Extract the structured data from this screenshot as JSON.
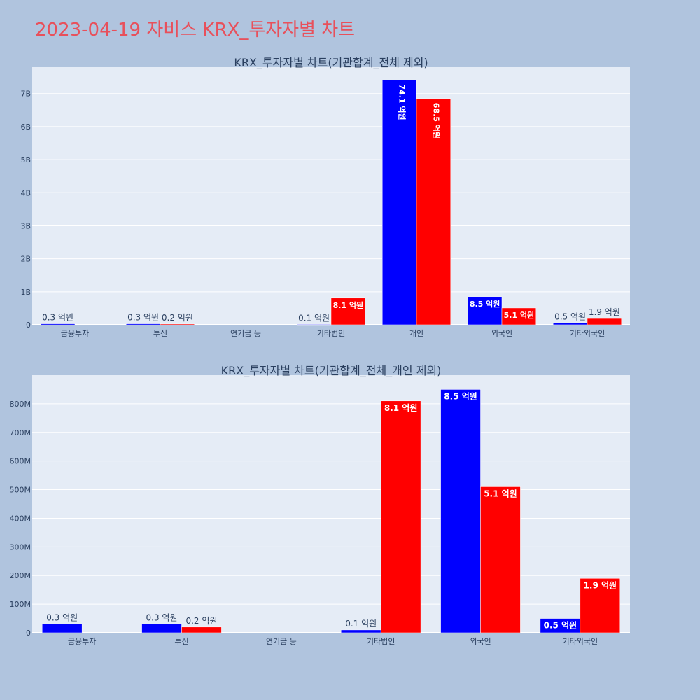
{
  "page_title": "2023-04-19 자비스 KRX_투자자별 차트",
  "colors": {
    "buy": "#0000ff",
    "sell": "#ff0000",
    "plot_bg": "#e5ecf6",
    "page_bg": "#b0c4de",
    "title": "#e8505b"
  },
  "chart_data": [
    {
      "type": "bar",
      "title": "KRX_투자자별 차트(기관합계_전체 제외)",
      "categories": [
        "금융투자",
        "투신",
        "연기금 등",
        "기타법인",
        "개인",
        "외국인",
        "기타외국인"
      ],
      "y_tick_values": [
        0,
        1000000000,
        2000000000,
        3000000000,
        4000000000,
        5000000000,
        6000000000,
        7000000000
      ],
      "y_tick_labels": [
        "0",
        "1B",
        "2B",
        "3B",
        "4B",
        "5B",
        "6B",
        "7B"
      ],
      "ylim": [
        0,
        7800000000
      ],
      "grid": true,
      "series": [
        {
          "color": "#0000ff",
          "values": [
            30000000,
            30000000,
            0,
            10000000,
            7410000000,
            850000000,
            50000000
          ],
          "labels": [
            "0.3 억원",
            "0.3 억원",
            "",
            "0.1 억원",
            "74.1 억원",
            "8.5 억원",
            "0.5 억원"
          ]
        },
        {
          "color": "#ff0000",
          "values": [
            0,
            20000000,
            0,
            810000000,
            6850000000,
            510000000,
            190000000
          ],
          "labels": [
            "",
            "0.2 억원",
            "",
            "8.1 억원",
            "68.5 억원",
            "5.1 억원",
            "1.9 억원"
          ]
        }
      ]
    },
    {
      "type": "bar",
      "title": "KRX_투자자별 차트(기관합계_전체_개인 제외)",
      "categories": [
        "금융투자",
        "투신",
        "연기금 등",
        "기타법인",
        "외국인",
        "기타외국인"
      ],
      "y_tick_values": [
        0,
        100000000,
        200000000,
        300000000,
        400000000,
        500000000,
        600000000,
        700000000,
        800000000
      ],
      "y_tick_labels": [
        "0",
        "100M",
        "200M",
        "300M",
        "400M",
        "500M",
        "600M",
        "700M",
        "800M"
      ],
      "ylim": [
        0,
        900000000
      ],
      "grid": true,
      "series": [
        {
          "color": "#0000ff",
          "values": [
            30000000,
            30000000,
            0,
            10000000,
            850000000,
            50000000
          ],
          "labels": [
            "0.3 억원",
            "0.3 억원",
            "",
            "0.1 억원",
            "8.5 억원",
            "0.5 억원"
          ]
        },
        {
          "color": "#ff0000",
          "values": [
            0,
            20000000,
            0,
            810000000,
            510000000,
            190000000
          ],
          "labels": [
            "",
            "0.2 억원",
            "",
            "8.1 억원",
            "5.1 억원",
            "1.9 억원"
          ]
        }
      ]
    }
  ]
}
